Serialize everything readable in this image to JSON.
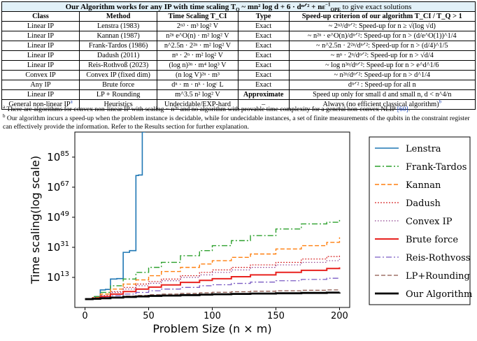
{
  "table": {
    "caption": {
      "pre": "Our Algorithm works for any IP with time scaling T",
      "sub": "Q",
      "mid": " ~ mn² log d + 6 · dⁿᐟ² + nε",
      "mid_sup": "−1",
      "mid_sub": "QPE",
      "post": " to give exact solutions"
    },
    "headers": [
      "Class",
      "Method",
      "Time Scaling T_CI",
      "Type",
      "Speed-up criterion of our algorithm T_CI / T_Q > 1"
    ],
    "rows": [
      {
        "class": "Linear IP",
        "method": "Lenstra (1983)",
        "scaling": "2ⁿ³ · m³ log² V",
        "type": "Exact",
        "criterion": "~ 2ⁿ³/dⁿᐟ²: Speed-up for n ≥ √(log √d)"
      },
      {
        "class": "Linear IP",
        "method": "Kannan (1987)",
        "scaling": "n²ⁿ e^O(n) · m² log² V",
        "type": "Exact",
        "criterion": "~ n²ⁿ · e^O(n)/dⁿᐟ²: Speed-up for n > (d/e^O(1))^1/4"
      },
      {
        "class": "Linear IP",
        "method": "Frank-Tardos (1986)",
        "scaling": "n^2.5n · 2²ⁿ · m² log² V",
        "type": "Exact",
        "criterion": "~ n^2.5n · 2²ⁿ/dⁿᐟ²: Speed-up for n > (d/4)^1/5"
      },
      {
        "class": "Linear IP",
        "method": "Dadush (2011)",
        "scaling": "nⁿ · 2ⁿ · m² log² V",
        "type": "Exact",
        "criterion": "~ nⁿ · 2ⁿ/dⁿᐟ²: Speed-up for n > √d/4"
      },
      {
        "class": "Linear IP",
        "method": "Reis-Rothvoß (2023)",
        "scaling": "(log n)³ⁿ · m⁴ log³ V",
        "type": "Exact",
        "criterion": "~ log n³ⁿ/dⁿᐟ²: Speed-up for n > e^d^1/6"
      },
      {
        "class": "Convex IP",
        "method": "Convex IP (fixed dim)",
        "scaling": "(n log V)²ⁿ · m³",
        "type": "Exact",
        "criterion": "~ n²ⁿ/dⁿᐟ²: Speed-up for n > d^1/4"
      },
      {
        "class": "Any IP",
        "method": "Brute force",
        "scaling": "dⁿ · m · nᵏ · logᶜ L",
        "type": "Exact",
        "criterion": "dⁿᐟ² : Speed-up for all n"
      },
      {
        "class": "Linear IP",
        "method": "LP + Rounding",
        "scaling": "m^3.5 n² log² V",
        "type": "Approximate",
        "criterion": "Speed up only for small d and small n, d < n^4/n"
      },
      {
        "class": "General non-linear IP",
        "class_note": "a",
        "method": "Heuristics",
        "scaling": "Undecidable/EXP-hard",
        "type": "–",
        "criterion": "Always (no efficient classical algorithm)",
        "criterion_note": "b"
      }
    ]
  },
  "footnotes": [
    {
      "mark": "a",
      "text": "There are algorithms for convex non-linear IP with scaling ~ n²ⁿ and no algorithm with provable time complexity for a general non-convex NLIP ",
      "ref": "[60]",
      "after": "."
    },
    {
      "mark": "b",
      "text": "Our algorithm incurs a speed-up when the problem instance is decidable, while for undecidable instances, a set of finite measurements of the qubits in the constraint register can effectively provide the information. Refer to the Results section for further explanation."
    }
  ],
  "chart_data": {
    "type": "line",
    "title": "",
    "xlabel": "Problem Size (n × m)",
    "ylabel": "Time scaling(log scale)",
    "xlim": [
      -8,
      208
    ],
    "ylim_log10": [
      -5,
      100
    ],
    "xticks": [
      0,
      50,
      100,
      150,
      200
    ],
    "yticks_log10": [
      13,
      31,
      49,
      67,
      85
    ],
    "ytick_labels": [
      "10^13",
      "10^31",
      "10^49",
      "10^67",
      "10^85"
    ],
    "legend_position": "right",
    "series": [
      {
        "name": "Lenstra",
        "color": "#1f77b4",
        "dash": "solid",
        "width": 1.6,
        "x": [
          0,
          8,
          12,
          16,
          20,
          25,
          30,
          35,
          40,
          42,
          45,
          47
        ],
        "y_log10": [
          0,
          1.5,
          5.5,
          5.8,
          12.0,
          12.3,
          28.0,
          29.0,
          74.0,
          74.3,
          100.0,
          112.0
        ]
      },
      {
        "name": "Frank-Tardos",
        "color": "#2ca02c",
        "dash": "8,3,2,3",
        "width": 1.4,
        "x": [
          0,
          6,
          12,
          20,
          30,
          40,
          50,
          60,
          75,
          90,
          100,
          115,
          130,
          150,
          170,
          190,
          200
        ],
        "y_log10": [
          0,
          1.5,
          4,
          8,
          12,
          16,
          19,
          22,
          26,
          29,
          32,
          35,
          38,
          42,
          45,
          46,
          48
        ]
      },
      {
        "name": "Kannan",
        "color": "#ff7f0e",
        "dash": "6,3",
        "width": 1.4,
        "x": [
          0,
          6,
          12,
          20,
          30,
          40,
          50,
          60,
          75,
          90,
          100,
          115,
          130,
          150,
          170,
          190,
          200
        ],
        "y_log10": [
          0,
          1,
          3,
          6,
          9,
          11.5,
          14,
          16.5,
          19,
          21,
          23,
          25,
          27,
          30,
          32,
          34,
          37
        ]
      },
      {
        "name": "Dadush",
        "color": "#d62728",
        "dash": "2,2",
        "width": 1.2,
        "x": [
          0,
          6,
          12,
          20,
          30,
          40,
          50,
          60,
          75,
          90,
          100,
          115,
          130,
          150,
          170,
          190,
          200
        ],
        "y_log10": [
          0,
          0.8,
          2.2,
          4.5,
          7,
          9,
          10.5,
          12,
          14,
          16,
          17.5,
          19,
          20.5,
          22,
          24,
          25.5,
          26.5
        ]
      },
      {
        "name": "Convex IP",
        "color": "#8c3b8c",
        "dash": "1.5,2.5",
        "width": 1.2,
        "x": [
          0,
          6,
          12,
          20,
          30,
          40,
          50,
          60,
          75,
          90,
          100,
          115,
          130,
          150,
          170,
          190,
          200
        ],
        "y_log10": [
          0,
          0.7,
          2,
          4,
          6,
          8,
          9.5,
          11,
          13,
          14.5,
          16,
          17.5,
          19,
          20.5,
          22,
          23,
          24
        ]
      },
      {
        "name": "Brute force",
        "color": "#e8221f",
        "dash": "solid",
        "width": 2.0,
        "x": [
          0,
          6,
          12,
          20,
          30,
          40,
          50,
          60,
          75,
          90,
          100,
          115,
          130,
          150,
          170,
          190,
          200
        ],
        "y_log10": [
          0,
          0.5,
          1.5,
          3,
          4.5,
          6,
          7.2,
          8.5,
          10,
          11.2,
          12.2,
          13.4,
          14.5,
          16,
          17.2,
          18.3,
          19
        ]
      },
      {
        "name": "Reis-Rothvoss",
        "color": "#7b5cc4",
        "dash": "8,3,2,3",
        "width": 1.3,
        "x": [
          0,
          6,
          12,
          20,
          30,
          40,
          50,
          60,
          75,
          90,
          100,
          115,
          130,
          150,
          170,
          190,
          200
        ],
        "y_log10": [
          0,
          0.4,
          1,
          2,
          3,
          4,
          5,
          6,
          7,
          8,
          8.6,
          9.4,
          10.2,
          11,
          11.8,
          12.5,
          13
        ]
      },
      {
        "name": "LP+Rounding",
        "color": "#8c564b",
        "dash": "6,3",
        "width": 1.3,
        "x": [
          0,
          6,
          12,
          20,
          30,
          40,
          50,
          60,
          75,
          90,
          100,
          115,
          130,
          150,
          170,
          190,
          200
        ],
        "y_log10": [
          0,
          0.3,
          0.7,
          1.2,
          1.8,
          2.2,
          2.6,
          3,
          3.4,
          3.8,
          4.1,
          4.4,
          4.7,
          5,
          5.3,
          5.5,
          5.8
        ]
      },
      {
        "name": "Our Algorithm",
        "color": "#000000",
        "dash": "solid",
        "width": 2.8,
        "x": [
          0,
          6,
          12,
          20,
          30,
          40,
          50,
          60,
          75,
          90,
          100,
          115,
          130,
          150,
          170,
          190,
          200
        ],
        "y_log10": [
          0,
          0.2,
          0.5,
          0.9,
          1.3,
          1.6,
          1.9,
          2.1,
          2.4,
          2.7,
          2.9,
          3.1,
          3.3,
          3.5,
          3.7,
          3.9,
          4
        ]
      }
    ]
  }
}
